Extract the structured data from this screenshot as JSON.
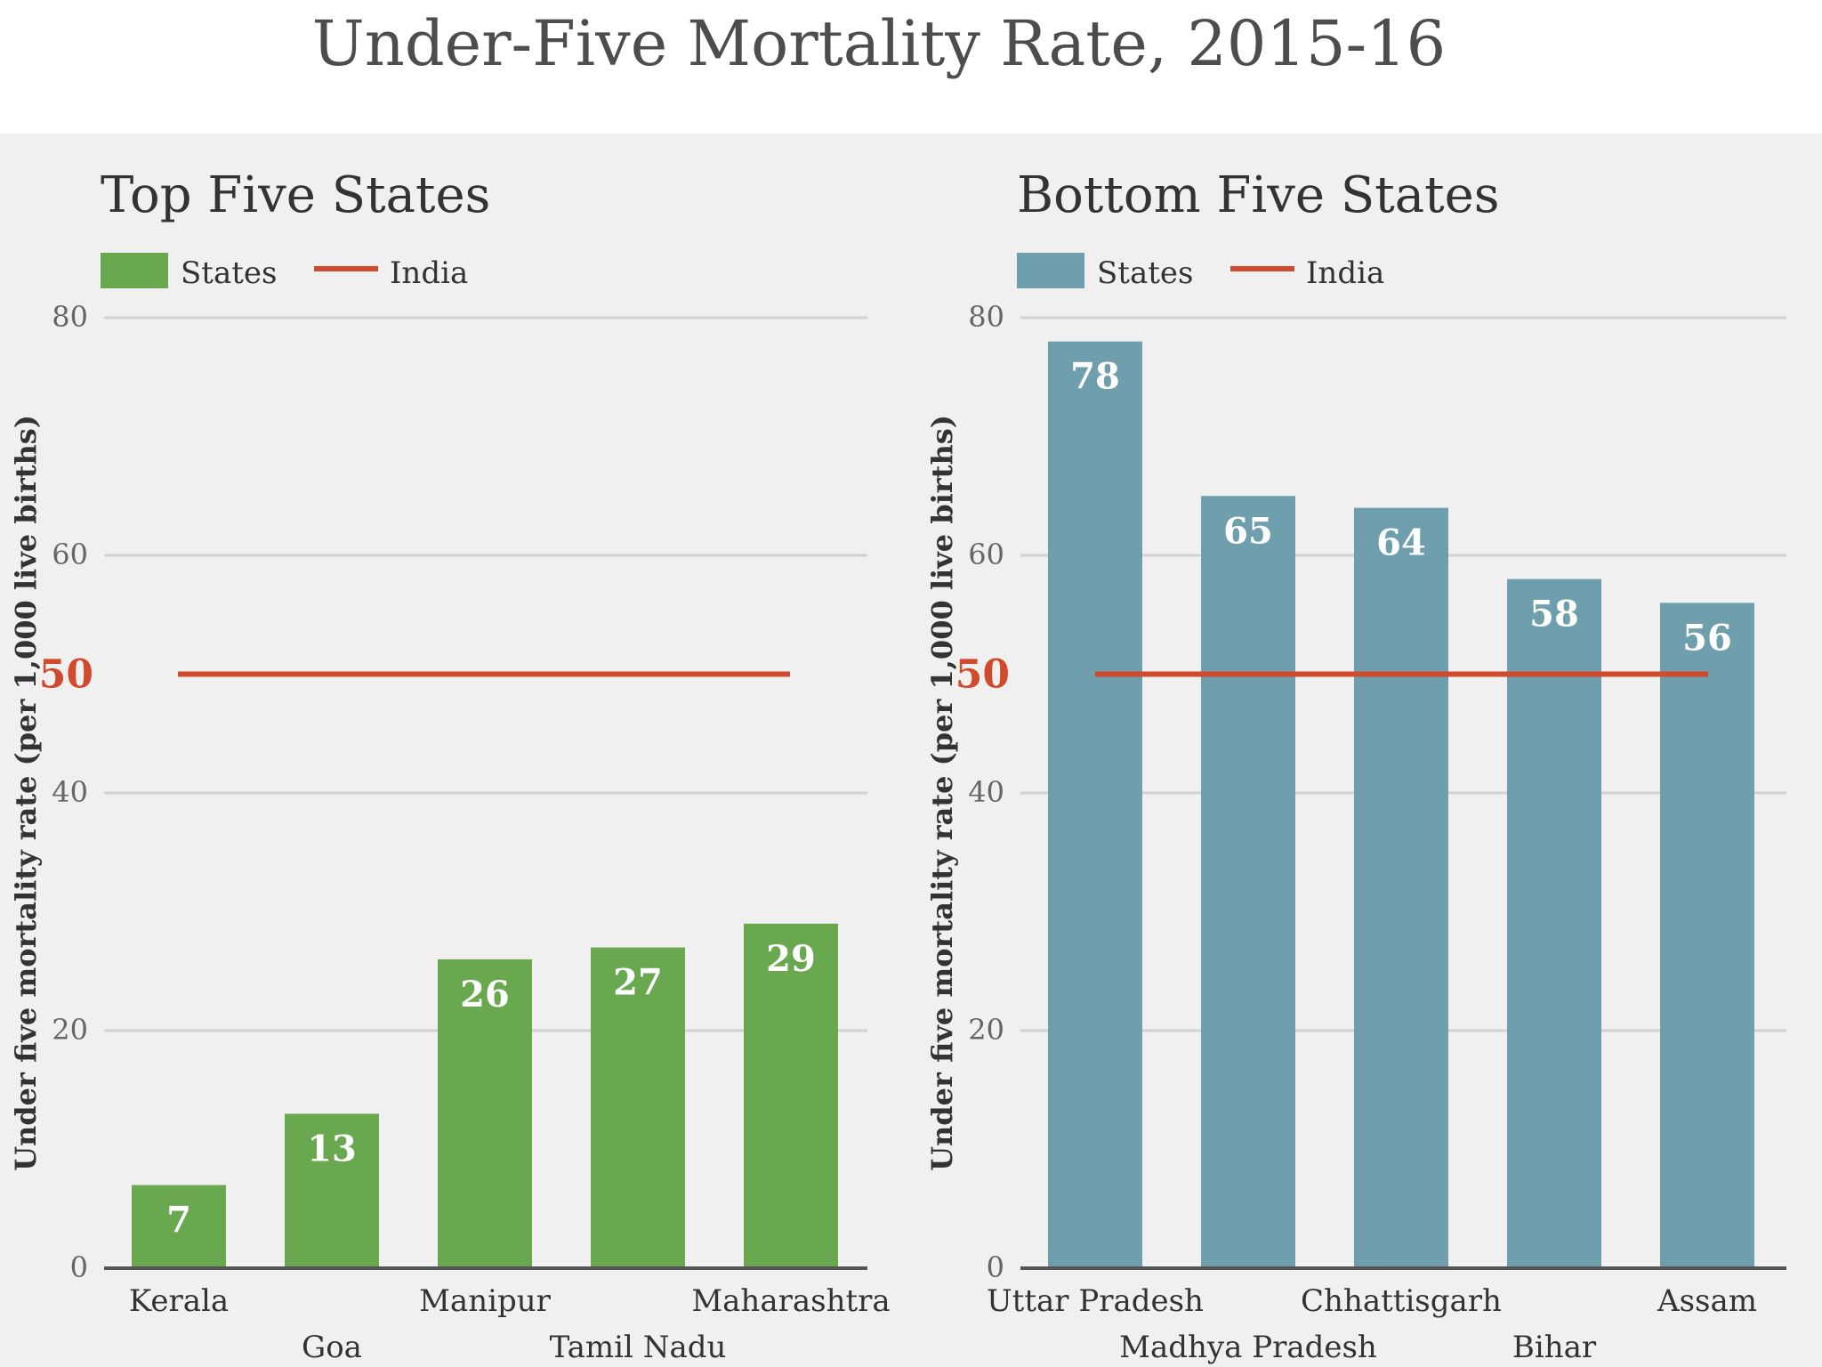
{
  "title": "Under-Five Mortality Rate, 2015-16",
  "colors": {
    "page_bg": "#ffffff",
    "panel_bg": "#f0f0f0",
    "title_text": "#4d4d4d",
    "text": "#333333",
    "tick_text": "#666666",
    "grid": "#d2d2d2",
    "axis": "#555555",
    "india_line": "#d04a2d",
    "bar_label": "#ffffff"
  },
  "chart_data": [
    {
      "type": "bar",
      "title": "Top Five States",
      "categories": [
        "Kerala",
        "Goa",
        "Manipur",
        "Tamil Nadu",
        "Maharashtra"
      ],
      "values": [
        7,
        13,
        26,
        27,
        29
      ],
      "data_labels": [
        "7",
        "13",
        "26",
        "27",
        "29"
      ],
      "bar_color": "#6aa84f",
      "reference_line": {
        "name": "India",
        "value": 50,
        "label": "50"
      },
      "legend": {
        "position": "top-left",
        "entries": [
          "States",
          "India"
        ]
      },
      "ylabel": "Under five mortality rate (per 1,000 live births)",
      "xlabel": "",
      "ylim": [
        0,
        80
      ],
      "yticks": [
        0,
        20,
        40,
        60,
        80
      ],
      "ytick_labels": [
        "0",
        "20",
        "40",
        "60",
        "80"
      ],
      "grid": true
    },
    {
      "type": "bar",
      "title": "Bottom Five States",
      "categories": [
        "Uttar Pradesh",
        "Madhya Pradesh",
        "Chhattisgarh",
        "Bihar",
        "Assam"
      ],
      "values": [
        78,
        65,
        64,
        58,
        56
      ],
      "data_labels": [
        "78",
        "65",
        "64",
        "58",
        "56"
      ],
      "bar_color": "#6f9fad",
      "reference_line": {
        "name": "India",
        "value": 50,
        "label": "50"
      },
      "legend": {
        "position": "top-left",
        "entries": [
          "States",
          "India"
        ]
      },
      "ylabel": "Under five mortality rate (per 1,000 live births)",
      "xlabel": "",
      "ylim": [
        0,
        80
      ],
      "yticks": [
        0,
        20,
        40,
        60,
        80
      ],
      "ytick_labels": [
        "0",
        "20",
        "40",
        "60",
        "80"
      ],
      "grid": true
    }
  ]
}
